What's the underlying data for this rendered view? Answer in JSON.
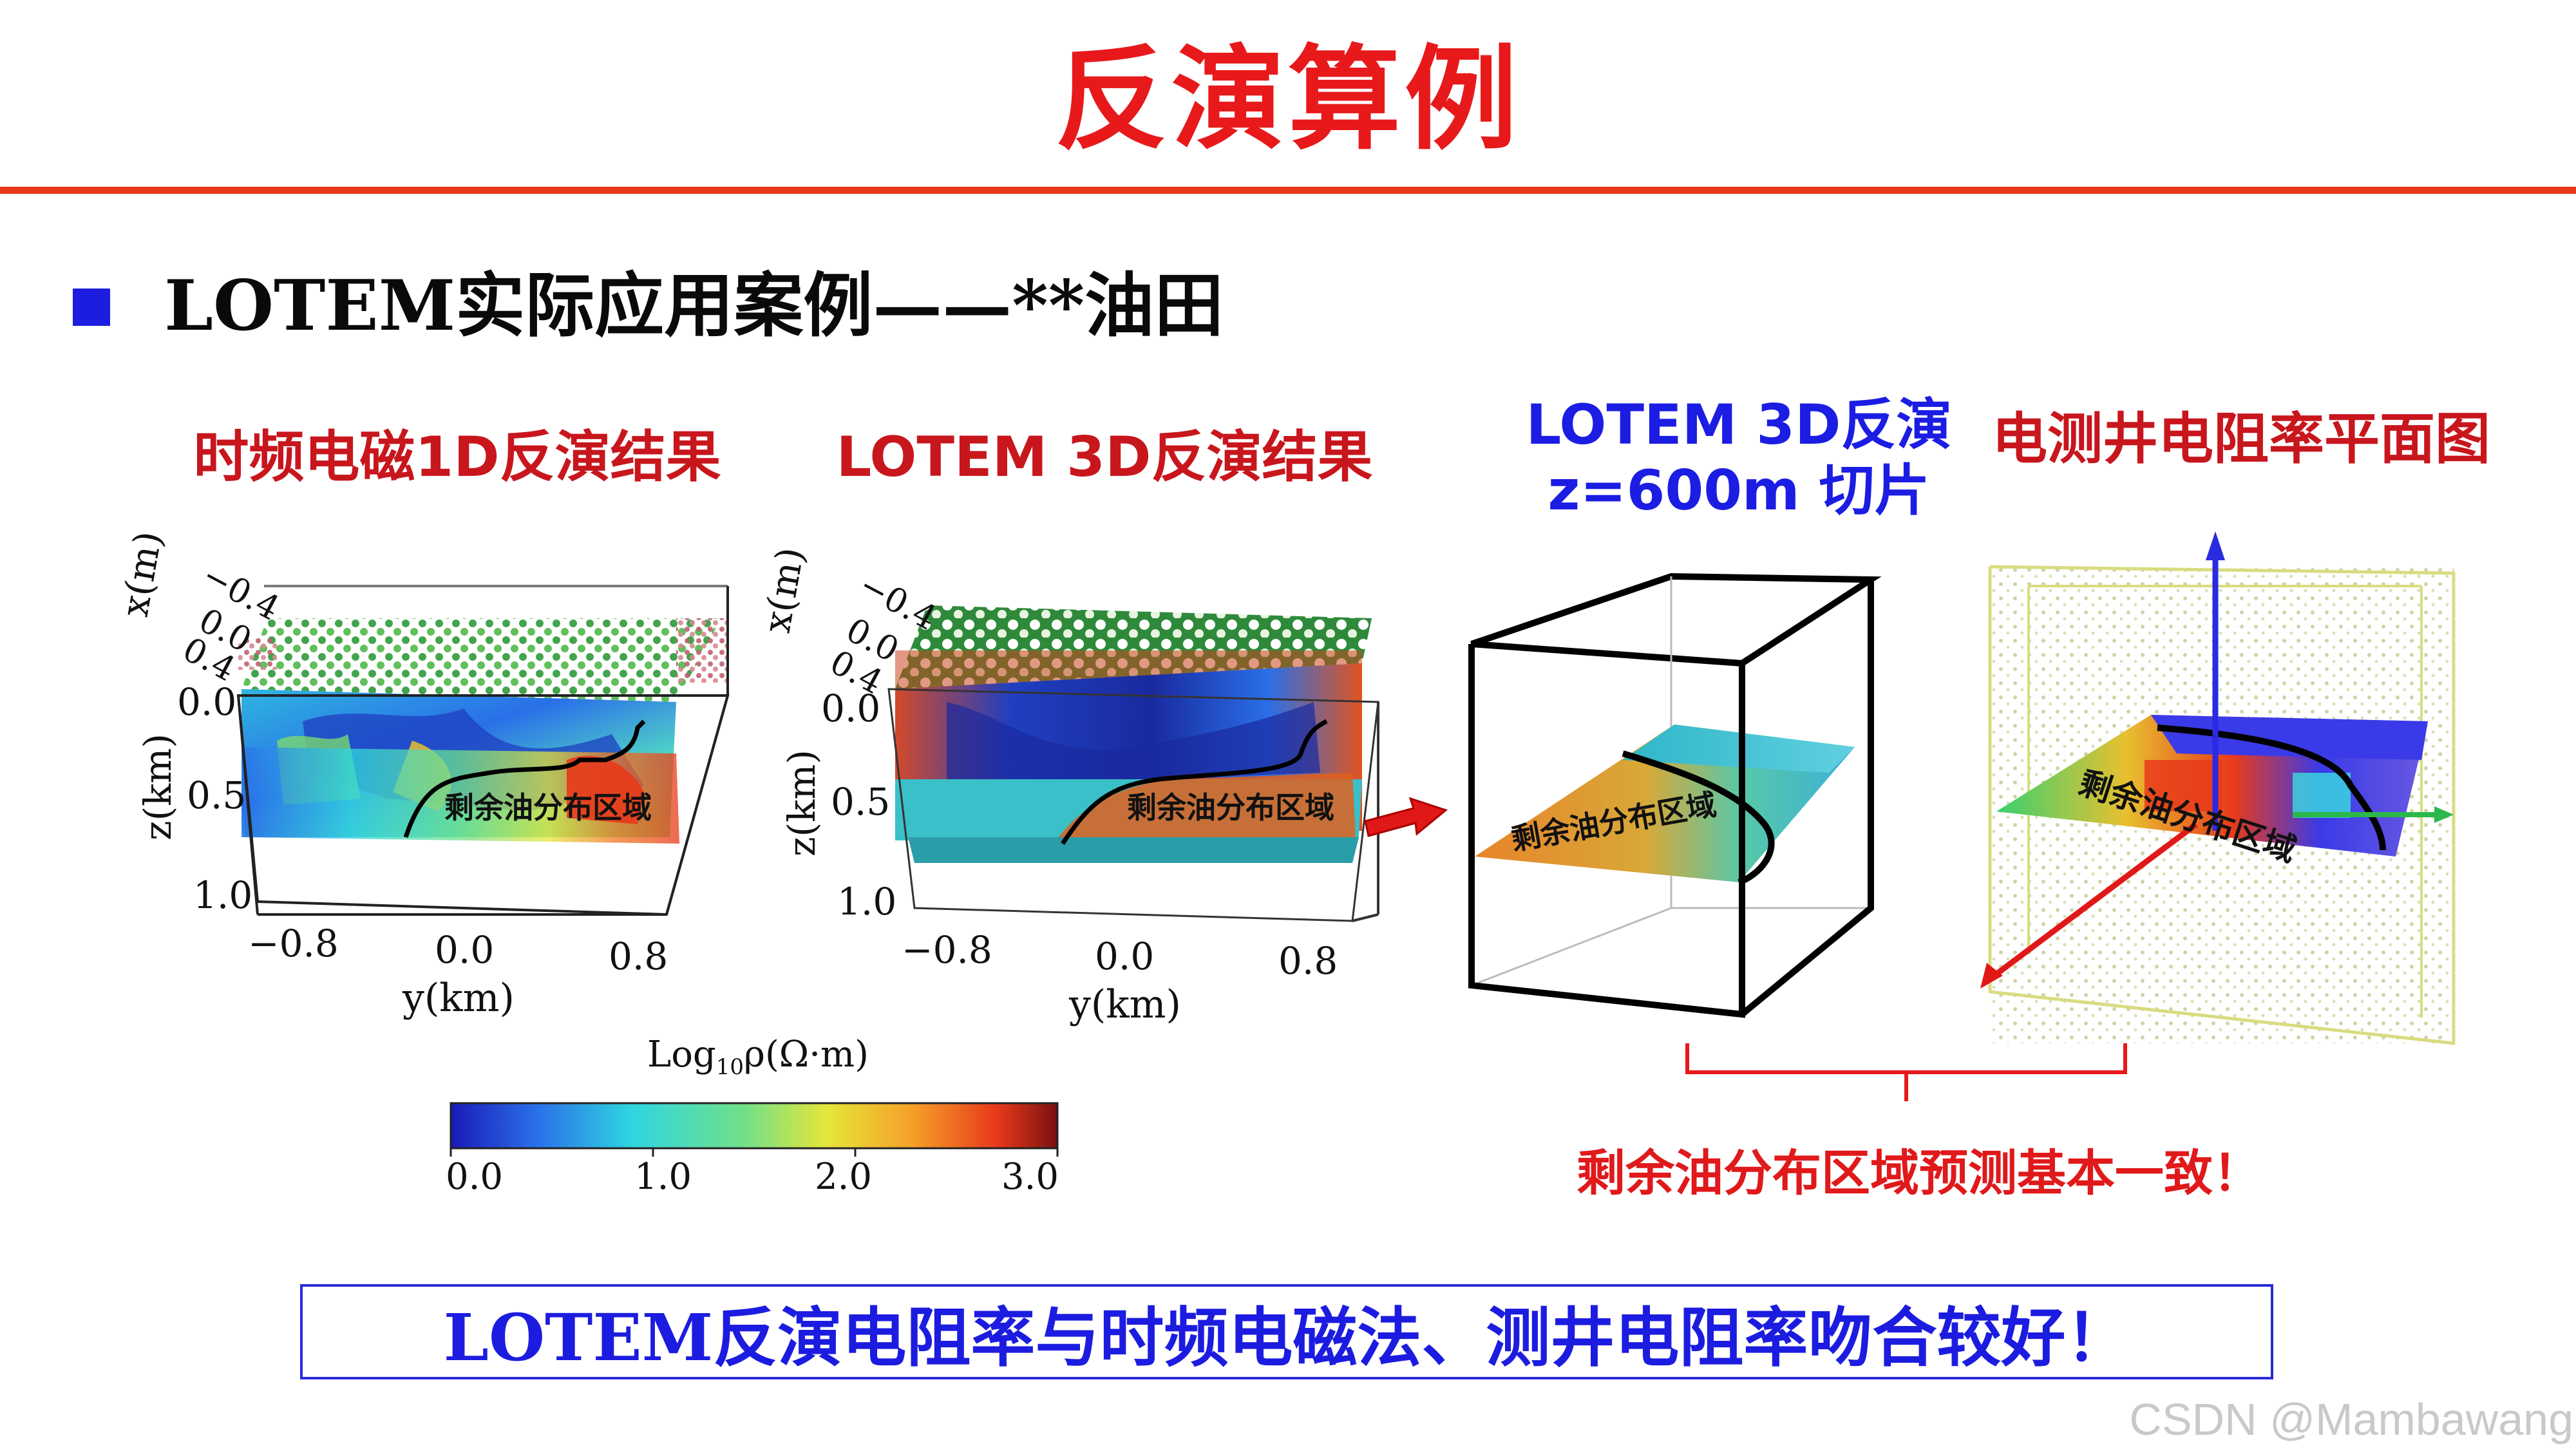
{
  "slide": {
    "title": "反演算例",
    "subtitle": "LOTEM实际应用案例——**油田"
  },
  "panels": {
    "p1": {
      "caption": "时频电磁1D反演结果"
    },
    "p2": {
      "caption": "LOTEM 3D反演结果"
    },
    "p3": {
      "caption_line1": "LOTEM 3D反演",
      "caption_line2": "z=600m 切片"
    },
    "p4": {
      "caption": "电测井电阻率平面图"
    }
  },
  "plot_labels": {
    "region_label": "剩余油分布区域",
    "x_axis_label": "x(m)",
    "x_ticks": [
      "−0.4",
      "0.0",
      "0.4"
    ],
    "z_axis_label": "z(km)",
    "z_ticks": [
      "0.0",
      "0.5",
      "1.0"
    ],
    "y_axis_label": "y(km)",
    "y_ticks": [
      "−0.8",
      "0.0",
      "0.8"
    ]
  },
  "colorbar": {
    "label_prefix": "Log",
    "label_sub": "10",
    "label_suffix": "ρ(Ω·m)",
    "ticks": [
      "0.0",
      "1.0",
      "2.0",
      "3.0"
    ],
    "colors": [
      "#1a1ab8",
      "#2a6fe8",
      "#2fd6e0",
      "#6fe08a",
      "#e6e63a",
      "#f5a028",
      "#e8391b",
      "#7a1010"
    ]
  },
  "note": "剩余油分布区域预测基本一致！",
  "conclusion": "LOTEM反演电阻率与时频电磁法、测井电阻率吻合较好！",
  "watermark": "CSDN @Mambawang",
  "colors": {
    "title_red": "#e8191b",
    "caption_red": "#c8161d",
    "caption_blue": "#1b1de3",
    "bullet_blue": "#1d1de0",
    "rule": "#e8391b"
  }
}
